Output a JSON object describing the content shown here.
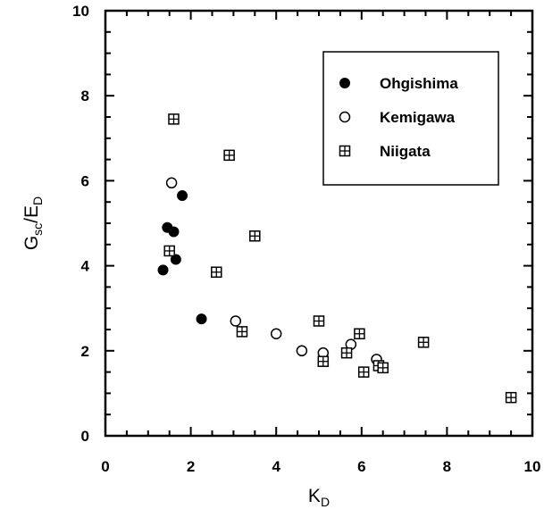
{
  "chart_data": {
    "type": "scatter",
    "xlabel": {
      "main": "K",
      "sub": "D"
    },
    "ylabel": {
      "main": "G",
      "sub1": "sc",
      "mid": "/E",
      "sub2": "D"
    },
    "xlim": [
      0,
      10
    ],
    "ylim": [
      0,
      10
    ],
    "x_ticks": [
      "0",
      "2",
      "4",
      "6",
      "8",
      "10"
    ],
    "y_ticks": [
      "0",
      "2",
      "4",
      "6",
      "8",
      "10"
    ],
    "grid": false,
    "legend_position": "top-right",
    "series": [
      {
        "name": "Ohgishima",
        "marker": "filled-circle",
        "color": "#000000",
        "points": [
          [
            1.35,
            3.9
          ],
          [
            1.45,
            4.9
          ],
          [
            1.6,
            4.8
          ],
          [
            1.65,
            4.15
          ],
          [
            1.8,
            5.65
          ],
          [
            2.25,
            2.75
          ]
        ]
      },
      {
        "name": "Kemigawa",
        "marker": "open-circle",
        "color": "#000000",
        "points": [
          [
            1.55,
            5.95
          ],
          [
            3.05,
            2.7
          ],
          [
            4.0,
            2.4
          ],
          [
            4.6,
            2.0
          ],
          [
            5.1,
            1.95
          ],
          [
            5.75,
            2.15
          ],
          [
            6.35,
            1.8
          ]
        ]
      },
      {
        "name": "Niigata",
        "marker": "boxed-plus",
        "color": "#000000",
        "points": [
          [
            1.6,
            7.45
          ],
          [
            2.9,
            6.6
          ],
          [
            1.5,
            4.35
          ],
          [
            3.5,
            4.7
          ],
          [
            2.6,
            3.85
          ],
          [
            3.2,
            2.45
          ],
          [
            5.0,
            2.7
          ],
          [
            5.1,
            1.75
          ],
          [
            5.65,
            1.95
          ],
          [
            5.95,
            2.4
          ],
          [
            6.05,
            1.5
          ],
          [
            6.4,
            1.65
          ],
          [
            6.5,
            1.6
          ],
          [
            7.45,
            2.2
          ],
          [
            9.5,
            0.9
          ]
        ]
      }
    ]
  }
}
